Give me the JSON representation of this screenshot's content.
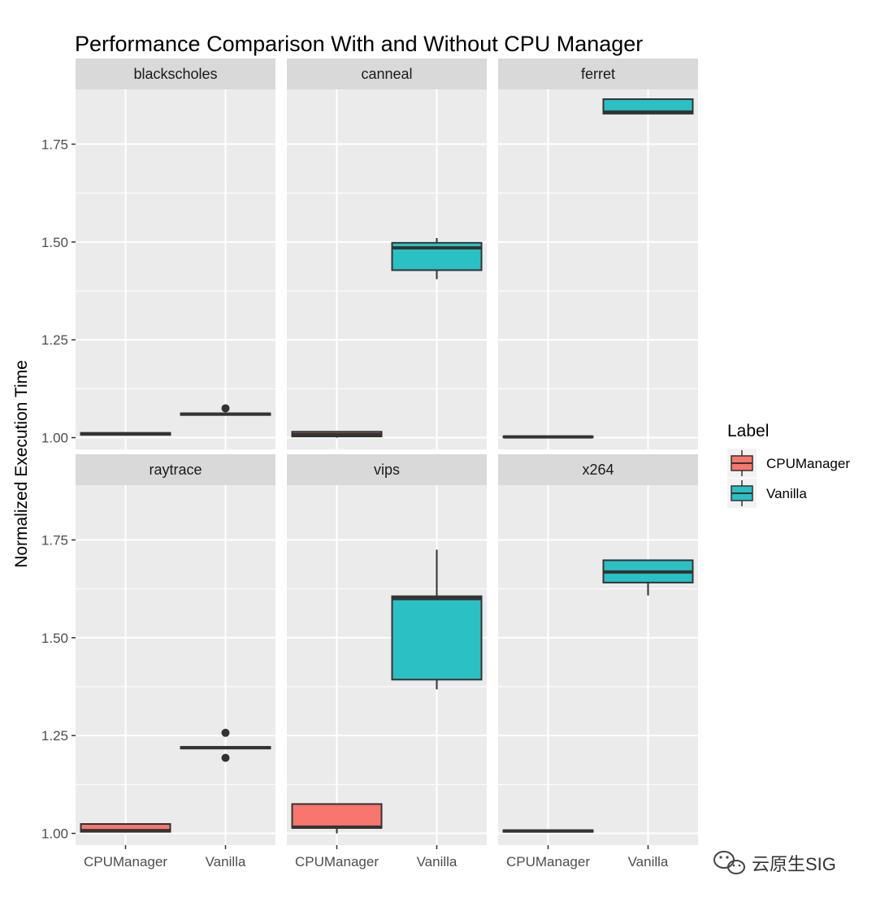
{
  "chart_data": {
    "type": "boxplot",
    "title": "Performance Comparison With and Without CPU Manager",
    "ylabel": "Normalized Execution Time",
    "xlabel": "",
    "ylim": [
      0.97,
      1.89
    ],
    "yticks": [
      1.0,
      1.25,
      1.5,
      1.75
    ],
    "ytick_labels": [
      "1.00",
      "1.25",
      "1.50",
      "1.75"
    ],
    "categories": [
      "CPUManager",
      "Vanilla"
    ],
    "legend": {
      "title": "Label",
      "position": "right",
      "items": [
        {
          "label": "CPUManager",
          "color": "#F8766D"
        },
        {
          "label": "Vanilla",
          "color": "#2BC0C4"
        }
      ]
    },
    "facets": [
      {
        "name": "blackscholes",
        "boxes": [
          {
            "category": "CPUManager",
            "min": 1.005,
            "q1": 1.007,
            "median": 1.01,
            "q3": 1.012,
            "max": 1.012,
            "outliers": []
          },
          {
            "category": "Vanilla",
            "min": 1.058,
            "q1": 1.058,
            "median": 1.06,
            "q3": 1.062,
            "max": 1.062,
            "outliers": [
              1.075
            ]
          }
        ]
      },
      {
        "name": "canneal",
        "boxes": [
          {
            "category": "CPUManager",
            "min": 1.0,
            "q1": 1.003,
            "median": 1.008,
            "q3": 1.015,
            "max": 1.017,
            "outliers": []
          },
          {
            "category": "Vanilla",
            "min": 1.405,
            "q1": 1.428,
            "median": 1.485,
            "q3": 1.498,
            "max": 1.51,
            "outliers": []
          }
        ]
      },
      {
        "name": "ferret",
        "boxes": [
          {
            "category": "CPUManager",
            "min": 1.0,
            "q1": 1.001,
            "median": 1.002,
            "q3": 1.003,
            "max": 1.004,
            "outliers": []
          },
          {
            "category": "Vanilla",
            "min": 1.828,
            "q1": 1.828,
            "median": 1.832,
            "q3": 1.865,
            "max": 1.865,
            "outliers": []
          }
        ]
      },
      {
        "name": "raytrace",
        "boxes": [
          {
            "category": "CPUManager",
            "min": 1.002,
            "q1": 1.004,
            "median": 1.007,
            "q3": 1.024,
            "max": 1.024,
            "outliers": []
          },
          {
            "category": "Vanilla",
            "min": 1.216,
            "q1": 1.217,
            "median": 1.219,
            "q3": 1.221,
            "max": 1.222,
            "outliers": [
              1.257,
              1.193
            ]
          }
        ]
      },
      {
        "name": "vips",
        "boxes": [
          {
            "category": "CPUManager",
            "min": 1.0,
            "q1": 1.014,
            "median": 1.016,
            "q3": 1.075,
            "max": 1.075,
            "outliers": []
          },
          {
            "category": "Vanilla",
            "min": 1.368,
            "q1": 1.393,
            "median": 1.6,
            "q3": 1.606,
            "max": 1.725,
            "outliers": []
          }
        ]
      },
      {
        "name": "x264",
        "boxes": [
          {
            "category": "CPUManager",
            "min": 1.003,
            "q1": 1.004,
            "median": 1.006,
            "q3": 1.008,
            "max": 1.009,
            "outliers": []
          },
          {
            "category": "Vanilla",
            "min": 1.608,
            "q1": 1.641,
            "median": 1.668,
            "q3": 1.698,
            "max": 1.698,
            "outliers": []
          }
        ]
      }
    ],
    "panel_background": "#EBEBEB",
    "strip_background": "#D9D9D9",
    "grid": true
  },
  "watermark": {
    "icon": "wechat-icon",
    "text": "云原生SIG"
  }
}
